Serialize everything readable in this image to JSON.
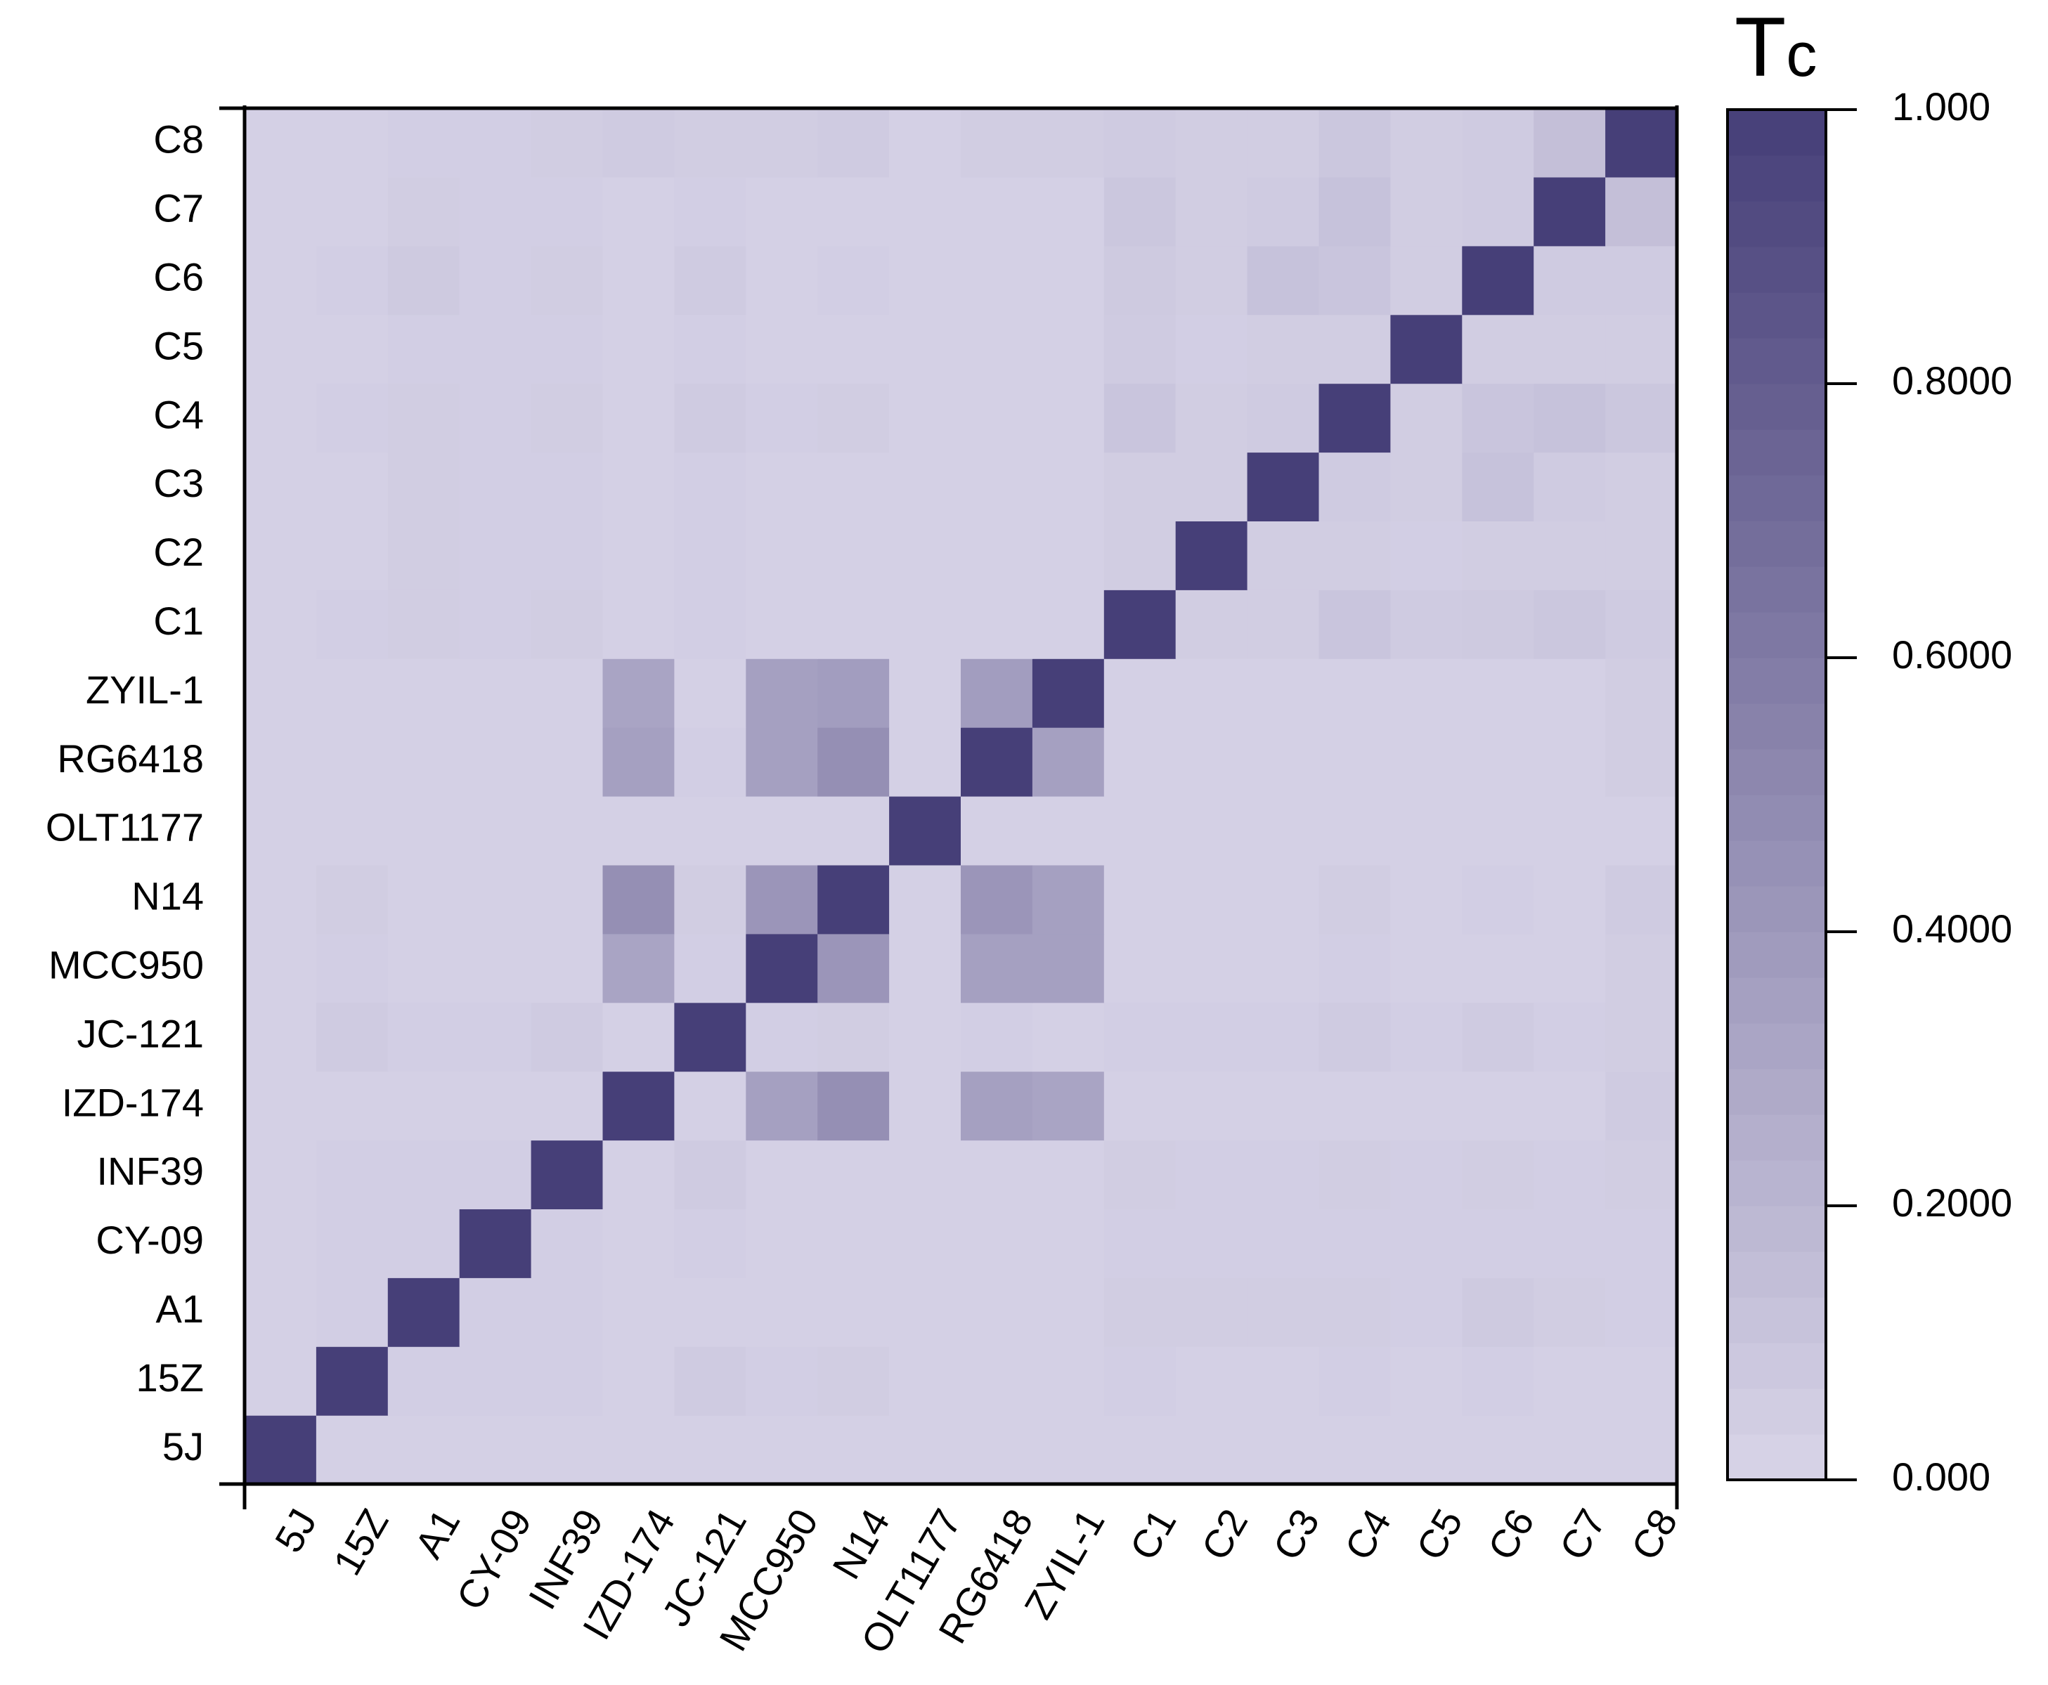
{
  "chart_data": {
    "type": "heatmap",
    "title": "",
    "xlabel": "",
    "ylabel": "",
    "labels": [
      "5J",
      "15Z",
      "A1",
      "CY-09",
      "INF39",
      "IZD-174",
      "JC-121",
      "MCC950",
      "N14",
      "OLT1177",
      "RG6418",
      "ZYIL-1",
      "C1",
      "C2",
      "C3",
      "C4",
      "C5",
      "C6",
      "C7",
      "C8"
    ],
    "z_range": [
      0,
      1
    ],
    "colorbar": {
      "title_main": "T",
      "title_sub": "c",
      "ticks": [
        {
          "value": 0.0,
          "label": "0.000"
        },
        {
          "value": 0.2,
          "label": "0.2000"
        },
        {
          "value": 0.4,
          "label": "0.4000"
        },
        {
          "value": 0.6,
          "label": "0.6000"
        },
        {
          "value": 0.8,
          "label": "0.8000"
        },
        {
          "value": 1.0,
          "label": "1.000"
        }
      ],
      "low_color": "#d8d4e8",
      "high_color": "#463f78"
    },
    "matrix": [
      [
        1.0,
        0.03,
        0.03,
        0.03,
        0.03,
        0.03,
        0.03,
        0.03,
        0.03,
        0.03,
        0.03,
        0.03,
        0.03,
        0.03,
        0.03,
        0.03,
        0.03,
        0.03,
        0.03,
        0.03
      ],
      [
        0.03,
        1.0,
        0.04,
        0.04,
        0.04,
        0.03,
        0.06,
        0.04,
        0.05,
        0.03,
        0.03,
        0.03,
        0.04,
        0.03,
        0.03,
        0.04,
        0.03,
        0.04,
        0.03,
        0.03
      ],
      [
        0.03,
        0.04,
        1.0,
        0.04,
        0.04,
        0.03,
        0.03,
        0.03,
        0.03,
        0.03,
        0.03,
        0.03,
        0.05,
        0.05,
        0.05,
        0.05,
        0.04,
        0.07,
        0.05,
        0.04
      ],
      [
        0.03,
        0.04,
        0.04,
        1.0,
        0.04,
        0.03,
        0.04,
        0.03,
        0.03,
        0.03,
        0.03,
        0.03,
        0.04,
        0.04,
        0.04,
        0.04,
        0.04,
        0.04,
        0.04,
        0.04
      ],
      [
        0.03,
        0.04,
        0.04,
        0.04,
        1.0,
        0.03,
        0.06,
        0.03,
        0.03,
        0.03,
        0.03,
        0.03,
        0.05,
        0.04,
        0.04,
        0.05,
        0.04,
        0.05,
        0.04,
        0.05
      ],
      [
        0.03,
        0.03,
        0.03,
        0.03,
        0.03,
        1.0,
        0.03,
        0.35,
        0.46,
        0.03,
        0.35,
        0.32,
        0.03,
        0.03,
        0.03,
        0.03,
        0.03,
        0.03,
        0.03,
        0.06
      ],
      [
        0.03,
        0.06,
        0.04,
        0.04,
        0.06,
        0.03,
        1.0,
        0.04,
        0.05,
        0.03,
        0.04,
        0.03,
        0.04,
        0.04,
        0.04,
        0.06,
        0.04,
        0.06,
        0.04,
        0.05
      ],
      [
        0.03,
        0.04,
        0.03,
        0.03,
        0.03,
        0.32,
        0.04,
        1.0,
        0.42,
        0.03,
        0.35,
        0.35,
        0.03,
        0.03,
        0.03,
        0.04,
        0.03,
        0.03,
        0.03,
        0.05
      ],
      [
        0.03,
        0.05,
        0.03,
        0.03,
        0.03,
        0.46,
        0.05,
        0.42,
        1.0,
        0.03,
        0.42,
        0.35,
        0.03,
        0.03,
        0.03,
        0.05,
        0.03,
        0.04,
        0.03,
        0.06
      ],
      [
        0.03,
        0.03,
        0.03,
        0.03,
        0.03,
        0.03,
        0.03,
        0.03,
        0.03,
        1.0,
        0.03,
        0.03,
        0.03,
        0.03,
        0.03,
        0.03,
        0.03,
        0.03,
        0.03,
        0.03
      ],
      [
        0.03,
        0.03,
        0.03,
        0.03,
        0.03,
        0.35,
        0.04,
        0.35,
        0.46,
        0.03,
        1.0,
        0.35,
        0.03,
        0.03,
        0.03,
        0.03,
        0.03,
        0.03,
        0.03,
        0.05
      ],
      [
        0.03,
        0.03,
        0.03,
        0.03,
        0.03,
        0.32,
        0.03,
        0.35,
        0.37,
        0.03,
        0.37,
        1.0,
        0.03,
        0.03,
        0.03,
        0.03,
        0.03,
        0.03,
        0.03,
        0.05
      ],
      [
        0.03,
        0.04,
        0.05,
        0.04,
        0.05,
        0.03,
        0.04,
        0.03,
        0.03,
        0.03,
        0.03,
        0.03,
        1.0,
        0.05,
        0.05,
        0.1,
        0.06,
        0.07,
        0.09,
        0.06
      ],
      [
        0.03,
        0.03,
        0.05,
        0.04,
        0.04,
        0.03,
        0.04,
        0.03,
        0.03,
        0.03,
        0.03,
        0.03,
        0.05,
        1.0,
        0.05,
        0.05,
        0.04,
        0.05,
        0.05,
        0.05
      ],
      [
        0.03,
        0.03,
        0.05,
        0.04,
        0.04,
        0.03,
        0.04,
        0.03,
        0.03,
        0.03,
        0.03,
        0.03,
        0.05,
        0.05,
        1.0,
        0.06,
        0.05,
        0.12,
        0.06,
        0.05
      ],
      [
        0.03,
        0.04,
        0.05,
        0.04,
        0.05,
        0.03,
        0.06,
        0.04,
        0.05,
        0.03,
        0.03,
        0.03,
        0.1,
        0.05,
        0.06,
        1.0,
        0.05,
        0.1,
        0.12,
        0.09
      ],
      [
        0.03,
        0.03,
        0.04,
        0.04,
        0.04,
        0.03,
        0.04,
        0.03,
        0.03,
        0.03,
        0.03,
        0.03,
        0.06,
        0.04,
        0.05,
        0.05,
        1.0,
        0.05,
        0.05,
        0.05
      ],
      [
        0.03,
        0.04,
        0.07,
        0.04,
        0.05,
        0.03,
        0.06,
        0.03,
        0.04,
        0.03,
        0.03,
        0.03,
        0.07,
        0.05,
        0.12,
        0.1,
        0.05,
        1.0,
        0.06,
        0.06
      ],
      [
        0.03,
        0.03,
        0.05,
        0.04,
        0.04,
        0.03,
        0.04,
        0.03,
        0.03,
        0.03,
        0.03,
        0.03,
        0.09,
        0.05,
        0.06,
        0.12,
        0.05,
        0.06,
        1.0,
        0.14
      ],
      [
        0.03,
        0.03,
        0.04,
        0.04,
        0.05,
        0.06,
        0.05,
        0.05,
        0.06,
        0.03,
        0.05,
        0.05,
        0.06,
        0.05,
        0.05,
        0.09,
        0.05,
        0.06,
        0.14,
        1.0
      ]
    ]
  }
}
